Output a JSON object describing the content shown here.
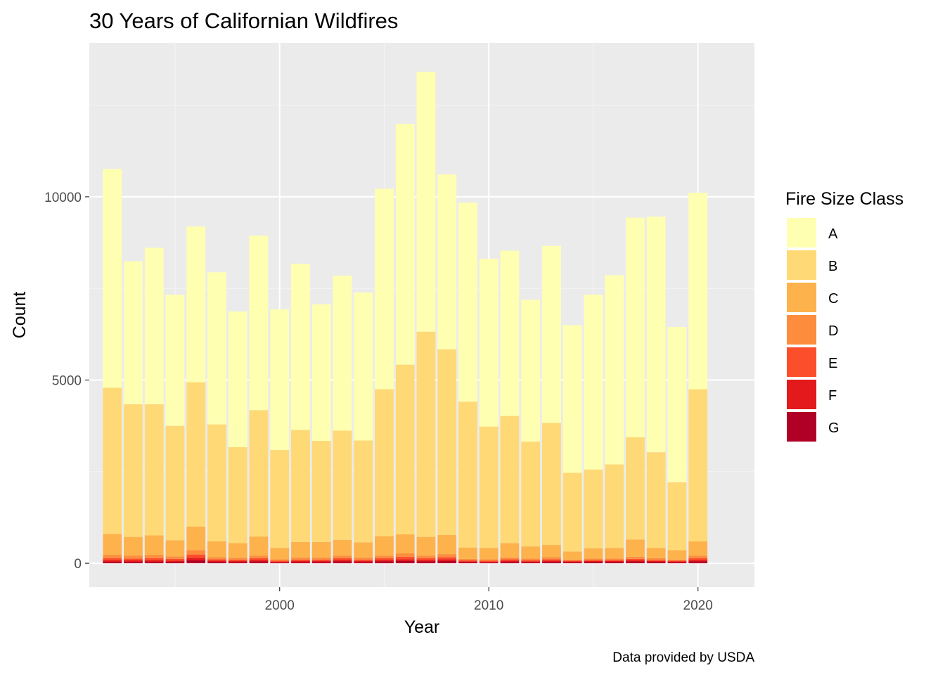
{
  "chart_data": {
    "type": "bar",
    "stacked": true,
    "title": "30 Years of Californian Wildfires",
    "xlabel": "Year",
    "ylabel": "Count",
    "caption": "Data provided by USDA",
    "x_ticks": [
      2000,
      2010,
      2020
    ],
    "y_ticks": [
      0,
      5000,
      10000
    ],
    "xlim": [
      1990.9,
      2022.7
    ],
    "ylim": [
      -650,
      14200
    ],
    "grid": true,
    "legend": {
      "title": "Fire Size Class",
      "position": "right"
    },
    "categories": [
      1992,
      1993,
      1994,
      1995,
      1996,
      1997,
      1998,
      1999,
      2000,
      2001,
      2002,
      2003,
      2004,
      2005,
      2006,
      2007,
      2008,
      2009,
      2010,
      2011,
      2012,
      2013,
      2014,
      2015,
      2016,
      2017,
      2018,
      2019,
      2020
    ],
    "series": [
      {
        "name": "A",
        "color": "#FFFFB2",
        "values": [
          5970,
          3900,
          4270,
          3580,
          4250,
          4150,
          3700,
          4760,
          3840,
          4530,
          3730,
          4230,
          4040,
          5470,
          6570,
          7090,
          4770,
          5430,
          4580,
          4510,
          3870,
          4830,
          4030,
          4770,
          5160,
          5990,
          6430,
          4240,
          5360
        ]
      },
      {
        "name": "B",
        "color": "#FED976",
        "values": [
          3990,
          3620,
          3580,
          3120,
          3940,
          3190,
          2620,
          3450,
          2670,
          3060,
          2760,
          2980,
          2780,
          4010,
          4630,
          5600,
          5070,
          3980,
          3310,
          3470,
          2860,
          3330,
          2150,
          2150,
          2280,
          2790,
          2610,
          1850,
          4150
        ]
      },
      {
        "name": "C",
        "color": "#FEB24C",
        "values": [
          570,
          510,
          530,
          440,
          640,
          430,
          400,
          520,
          310,
          420,
          420,
          430,
          410,
          530,
          520,
          510,
          520,
          310,
          310,
          390,
          330,
          330,
          220,
          280,
          290,
          470,
          280,
          260,
          390
        ]
      },
      {
        "name": "D",
        "color": "#FD8D3C",
        "values": [
          90,
          80,
          90,
          70,
          120,
          60,
          50,
          70,
          40,
          60,
          60,
          70,
          60,
          70,
          90,
          70,
          80,
          40,
          40,
          50,
          50,
          60,
          30,
          40,
          40,
          60,
          50,
          30,
          70
        ]
      },
      {
        "name": "E",
        "color": "#FC4E2A",
        "values": [
          60,
          50,
          60,
          50,
          90,
          40,
          40,
          50,
          30,
          40,
          40,
          50,
          40,
          50,
          70,
          50,
          60,
          30,
          30,
          40,
          30,
          40,
          20,
          30,
          30,
          40,
          30,
          20,
          50
        ]
      },
      {
        "name": "F",
        "color": "#E31A1C",
        "values": [
          40,
          40,
          40,
          30,
          70,
          30,
          30,
          40,
          20,
          30,
          30,
          40,
          30,
          40,
          50,
          40,
          50,
          20,
          20,
          30,
          20,
          30,
          20,
          20,
          20,
          30,
          20,
          20,
          40
        ]
      },
      {
        "name": "G",
        "color": "#B10026",
        "values": [
          40,
          40,
          40,
          40,
          80,
          40,
          30,
          50,
          20,
          30,
          30,
          50,
          30,
          50,
          60,
          50,
          60,
          30,
          20,
          40,
          30,
          40,
          30,
          40,
          40,
          50,
          40,
          30,
          50
        ]
      }
    ]
  },
  "colors": {
    "panel_background": "#EBEBEB",
    "grid_major": "#FFFFFF",
    "grid_minor": "#F5F5F5",
    "tick_text": "#4D4D4D"
  }
}
